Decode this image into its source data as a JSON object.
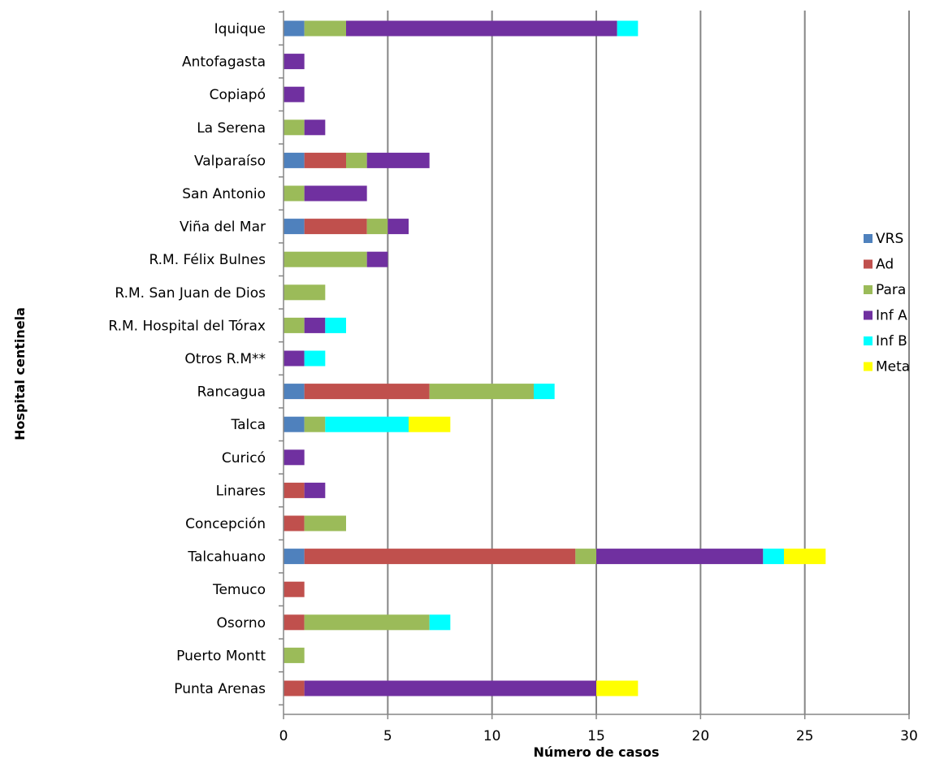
{
  "chart_data": {
    "type": "bar",
    "orientation": "horizontal",
    "stacked": true,
    "title": "",
    "xlabel": "Número de casos",
    "ylabel": "Hospital centinela",
    "xlim": [
      0,
      30
    ],
    "xticks": [
      "0",
      "5",
      "10",
      "15",
      "20",
      "25",
      "30"
    ],
    "grid": "vertical",
    "legend_position": "right",
    "categories": [
      "Iquique",
      "Antofagasta",
      "Copiapó",
      "La Serena",
      "Valparaíso",
      "San Antonio",
      "Viña del Mar",
      "R.M. Félix Bulnes",
      "R.M. San Juan de Dios",
      "R.M. Hospital del Tórax",
      "Otros R.M**",
      "Rancagua",
      "Talca",
      "Curicó",
      "Linares",
      "Concepción",
      "Talcahuano",
      "Temuco",
      "Osorno",
      "Puerto Montt",
      "Punta Arenas"
    ],
    "series": [
      {
        "name": "VRS",
        "color": "#4F81BD",
        "values": [
          1,
          0,
          0,
          0,
          1,
          0,
          1,
          0,
          0,
          0,
          0,
          1,
          1,
          0,
          0,
          0,
          1,
          0,
          0,
          0,
          0
        ]
      },
      {
        "name": "Ad",
        "color": "#C0504D",
        "values": [
          0,
          0,
          0,
          0,
          2,
          0,
          3,
          0,
          0,
          0,
          0,
          6,
          0,
          0,
          1,
          1,
          13,
          1,
          1,
          0,
          1
        ]
      },
      {
        "name": "Para",
        "color": "#9BBB59",
        "values": [
          2,
          0,
          0,
          1,
          1,
          1,
          1,
          4,
          2,
          1,
          0,
          5,
          1,
          0,
          0,
          2,
          1,
          0,
          6,
          1,
          0
        ]
      },
      {
        "name": "Inf A",
        "color": "#7030A0",
        "values": [
          13,
          1,
          1,
          1,
          3,
          3,
          1,
          1,
          0,
          1,
          1,
          0,
          0,
          1,
          1,
          0,
          8,
          0,
          0,
          0,
          14
        ]
      },
      {
        "name": "Inf B",
        "color": "#00FFFF",
        "values": [
          1,
          0,
          0,
          0,
          0,
          0,
          0,
          0,
          0,
          1,
          1,
          1,
          4,
          0,
          0,
          0,
          1,
          0,
          1,
          0,
          0
        ]
      },
      {
        "name": "Meta",
        "color": "#FFFF00",
        "values": [
          0,
          0,
          0,
          0,
          0,
          0,
          0,
          0,
          0,
          0,
          0,
          0,
          2,
          0,
          0,
          0,
          2,
          0,
          0,
          0,
          2
        ]
      }
    ]
  }
}
